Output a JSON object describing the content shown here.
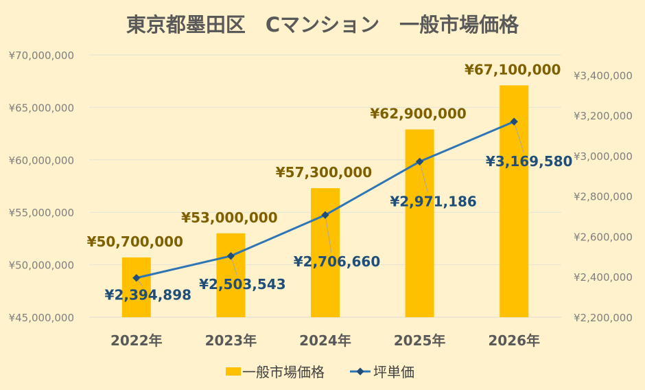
{
  "chart_data": {
    "type": "bar+line",
    "title": "東京都墨田区　Cマンション　一般市場価格",
    "categories": [
      "2022年",
      "2023年",
      "2024年",
      "2025年",
      "2026年"
    ],
    "series": [
      {
        "name": "一般市場価格",
        "type": "bar",
        "axis": "left",
        "color": "#FFC000",
        "label_color": "#7F6000",
        "values": [
          50700000,
          53000000,
          57300000,
          62900000,
          67100000
        ],
        "labels": [
          "¥50,700,000",
          "¥53,000,000",
          "¥57,300,000",
          "¥62,900,000",
          "¥67,100,000"
        ]
      },
      {
        "name": "坪単価",
        "type": "line",
        "axis": "right",
        "color": "#2E75B6",
        "label_color": "#1F4E79",
        "values": [
          2394898,
          2503543,
          2706660,
          2971186,
          3169580
        ],
        "labels": [
          "¥2,394,898",
          "¥2,503,543",
          "¥2,706,660",
          "¥2,971,186",
          "¥3,169,580"
        ]
      }
    ],
    "y_left": {
      "ylim": [
        45000000,
        70000000
      ],
      "ticks": [
        45000000,
        50000000,
        55000000,
        60000000,
        65000000,
        70000000
      ],
      "tick_labels": [
        "¥45,000,000",
        "¥50,000,000",
        "¥55,000,000",
        "¥60,000,000",
        "¥65,000,000",
        "¥70,000,000"
      ]
    },
    "y_right": {
      "ylim": [
        2200000,
        3500000
      ],
      "ticks": [
        2200000,
        2400000,
        2600000,
        2800000,
        3000000,
        3200000,
        3400000
      ],
      "tick_labels": [
        "¥2,200,000",
        "¥2,400,000",
        "¥2,600,000",
        "¥2,800,000",
        "¥3,000,000",
        "¥3,200,000",
        "¥3,400,000"
      ]
    },
    "grid": true,
    "legend": "bottom"
  }
}
